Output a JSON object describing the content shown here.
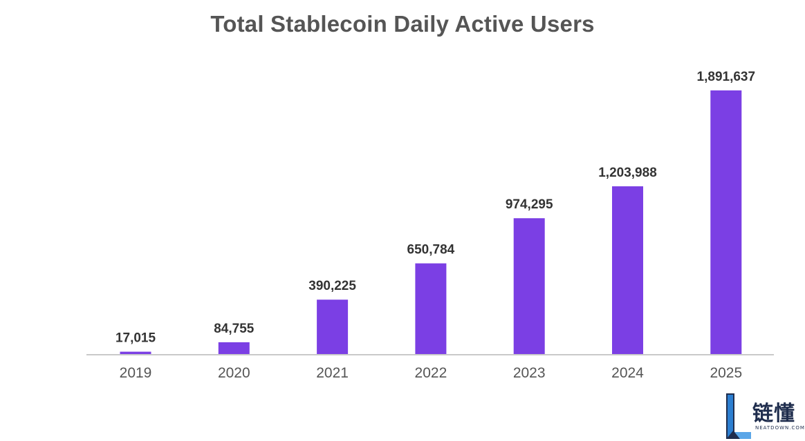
{
  "chart_data": {
    "type": "bar",
    "title": "Total Stablecoin Daily Active Users",
    "xlabel": "",
    "ylabel": "",
    "categories": [
      "2019",
      "2020",
      "2021",
      "2022",
      "2023",
      "2024",
      "2025"
    ],
    "values": [
      17015,
      84755,
      390225,
      650784,
      974295,
      1203988,
      1891637
    ],
    "value_labels": [
      "17,015",
      "84,755",
      "390,225",
      "650,784",
      "974,295",
      "1,203,988",
      "1,891,637"
    ],
    "ylim": [
      0,
      1891637
    ],
    "grid": false,
    "legend": "none",
    "colors": {
      "bar": "#7b3fe4",
      "title": "#555555",
      "axis": "#c9c9c9"
    }
  },
  "watermark": {
    "name": "链懂",
    "domain": "NEATDOWN.COM",
    "logo_icon": "letter-l-logo-icon"
  }
}
